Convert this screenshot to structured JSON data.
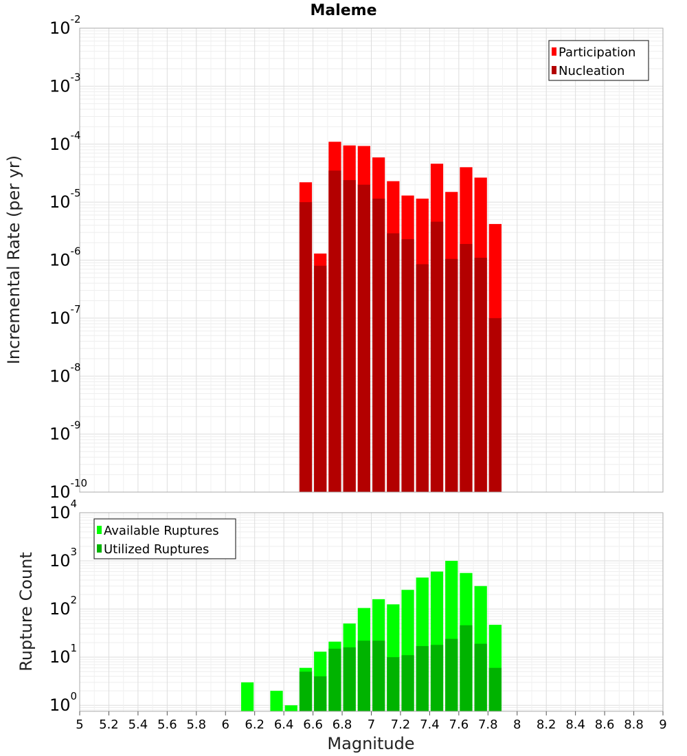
{
  "chart_data": [
    {
      "type": "bar",
      "title": "Maleme",
      "ylabel": "Incremental Rate (per yr)",
      "yscale": "log",
      "ylim": [
        1e-10,
        0.01
      ],
      "xlim": [
        5,
        9
      ],
      "grid": true,
      "legend_position": "top-right",
      "bin_width": 0.1,
      "x": [
        6.55,
        6.65,
        6.75,
        6.85,
        6.95,
        7.05,
        7.15,
        7.25,
        7.35,
        7.45,
        7.55,
        7.65,
        7.75,
        7.85
      ],
      "series": [
        {
          "name": "Participation",
          "color": "#ff0000",
          "values": [
            2.2e-05,
            1.3e-06,
            0.00011,
            9.5e-05,
            9.3e-05,
            5.9e-05,
            2.3e-05,
            1.3e-05,
            1.15e-05,
            4.6e-05,
            1.5e-05,
            4e-05,
            2.65e-05,
            4.2e-06
          ]
        },
        {
          "name": "Nucleation",
          "color": "#b30000",
          "values": [
            1e-05,
            8e-07,
            3.5e-05,
            2.4e-05,
            2e-05,
            1.15e-05,
            2.9e-06,
            2.3e-06,
            8.5e-07,
            4.6e-06,
            1.05e-06,
            1.9e-06,
            1.1e-06,
            1e-07
          ]
        }
      ]
    },
    {
      "type": "bar",
      "xlabel": "Magnitude",
      "ylabel": "Rupture Count",
      "yscale": "log",
      "ylim": [
        0.75,
        10000
      ],
      "xlim": [
        5,
        9
      ],
      "grid": true,
      "legend_position": "top-left",
      "bin_width": 0.1,
      "x": [
        6.15,
        6.35,
        6.45,
        6.55,
        6.65,
        6.75,
        6.85,
        6.95,
        7.05,
        7.15,
        7.25,
        7.35,
        7.45,
        7.55,
        7.65,
        7.75,
        7.85
      ],
      "series": [
        {
          "name": "Available Ruptures",
          "color": "#00ff00",
          "values": [
            3,
            2,
            1,
            6,
            13,
            21,
            50,
            105,
            160,
            125,
            250,
            450,
            600,
            1000,
            560,
            300,
            47
          ]
        },
        {
          "name": "Utilized Ruptures",
          "color": "#00b300",
          "values": [
            0,
            0,
            0,
            5,
            4,
            15,
            16,
            22,
            22,
            10,
            11,
            17,
            18,
            24,
            46,
            19,
            6
          ]
        }
      ]
    }
  ],
  "x_ticks": [
    "5",
    "5.2",
    "5.4",
    "5.6",
    "5.8",
    "6",
    "6.2",
    "6.4",
    "6.6",
    "6.8",
    "7",
    "7.2",
    "7.4",
    "7.6",
    "7.8",
    "8",
    "8.2",
    "8.4",
    "8.6",
    "8.8",
    "9"
  ],
  "top_y_ticks": [
    {
      "base": "10",
      "exp": "-2"
    },
    {
      "base": "10",
      "exp": "-3"
    },
    {
      "base": "10",
      "exp": "-4"
    },
    {
      "base": "10",
      "exp": "-5"
    },
    {
      "base": "10",
      "exp": "-6"
    },
    {
      "base": "10",
      "exp": "-7"
    },
    {
      "base": "10",
      "exp": "-8"
    },
    {
      "base": "10",
      "exp": "-9"
    },
    {
      "base": "10",
      "exp": "-10"
    }
  ],
  "bottom_y_ticks": [
    {
      "base": "10",
      "exp": "4"
    },
    {
      "base": "10",
      "exp": "3"
    },
    {
      "base": "10",
      "exp": "2"
    },
    {
      "base": "10",
      "exp": "1"
    },
    {
      "base": "10",
      "exp": "0"
    }
  ]
}
